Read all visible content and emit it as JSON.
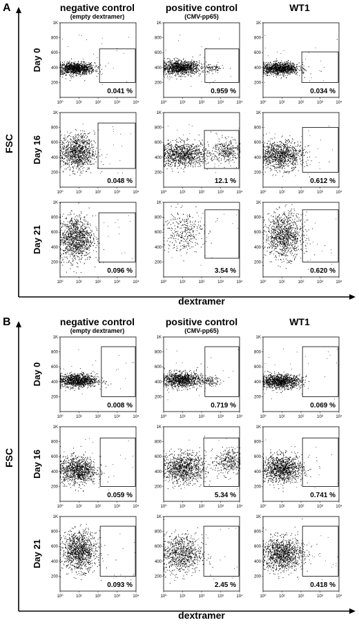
{
  "chart_data": [
    {
      "type": "scatter",
      "panel_label": "A",
      "columns": [
        {
          "title": "negative control",
          "subtitle": "(empty dextramer)"
        },
        {
          "title": "positive control",
          "subtitle": "(CMV-pp65)"
        },
        {
          "title": "WT1",
          "subtitle": ""
        }
      ],
      "rows": [
        "Day 0",
        "Day 16",
        "Day 21"
      ],
      "xlabel": "dextramer",
      "ylabel": "FSC",
      "x_scale": "log",
      "xlim": [
        1,
        10000
      ],
      "ylim": [
        0,
        1000
      ],
      "x_ticks": [
        "10⁰",
        "10¹",
        "10²",
        "10³",
        "10⁴"
      ],
      "y_ticks": [
        "200",
        "400",
        "600",
        "800",
        "1K"
      ],
      "gate_percent": [
        [
          "0.041 %",
          "0.959 %",
          "0.034 %"
        ],
        [
          "0.048 %",
          "12.1 %",
          "0.612 %"
        ],
        [
          "0.096 %",
          "3.54 %",
          "0.620 %"
        ]
      ],
      "gates": [
        [
          {
            "x": [
              120,
              10000
            ],
            "y": [
              200,
              650
            ]
          },
          {
            "x": [
              150,
              10000
            ],
            "y": [
              200,
              650
            ]
          },
          {
            "x": [
              110,
              10000
            ],
            "y": [
              200,
              610
            ]
          }
        ],
        [
          {
            "x": [
              100,
              10000
            ],
            "y": [
              250,
              860
            ]
          },
          {
            "x": [
              140,
              10000
            ],
            "y": [
              250,
              760
            ]
          },
          {
            "x": [
              120,
              10000
            ],
            "y": [
              200,
              800
            ]
          }
        ],
        [
          {
            "x": [
              110,
              10000
            ],
            "y": [
              200,
              860
            ]
          },
          {
            "x": [
              150,
              10000
            ],
            "y": [
              250,
              900
            ]
          },
          {
            "x": [
              120,
              10000
            ],
            "y": [
              200,
              900
            ]
          }
        ]
      ],
      "populations": [
        [
          [
            {
              "logx": 0.8,
              "y": 390,
              "sx": 0.5,
              "sy": 40,
              "n": 1100
            }
          ],
          [
            {
              "logx": 0.85,
              "y": 400,
              "sx": 0.55,
              "sy": 45,
              "n": 1100
            },
            {
              "logx": 2.6,
              "y": 390,
              "sx": 0.25,
              "sy": 30,
              "n": 80
            }
          ],
          [
            {
              "logx": 0.9,
              "y": 390,
              "sx": 0.5,
              "sy": 40,
              "n": 1100
            }
          ]
        ],
        [
          [
            {
              "logx": 0.9,
              "y": 470,
              "sx": 0.45,
              "sy": 120,
              "n": 1000
            }
          ],
          [
            {
              "logx": 1.0,
              "y": 440,
              "sx": 0.7,
              "sy": 80,
              "n": 1000
            },
            {
              "logx": 3.3,
              "y": 490,
              "sx": 0.35,
              "sy": 80,
              "n": 300
            }
          ],
          [
            {
              "logx": 0.9,
              "y": 430,
              "sx": 0.6,
              "sy": 95,
              "n": 1000
            }
          ]
        ],
        [
          [
            {
              "logx": 0.8,
              "y": 520,
              "sx": 0.45,
              "sy": 150,
              "n": 1100
            }
          ],
          [
            {
              "logx": 1.0,
              "y": 620,
              "sx": 0.55,
              "sy": 140,
              "n": 300
            }
          ],
          [
            {
              "logx": 1.1,
              "y": 560,
              "sx": 0.5,
              "sy": 150,
              "n": 1000
            }
          ]
        ]
      ]
    },
    {
      "type": "scatter",
      "panel_label": "B",
      "columns": [
        {
          "title": "negative control",
          "subtitle": "(empty dextramer)"
        },
        {
          "title": "positive control",
          "subtitle": "(CMV-pp65)"
        },
        {
          "title": "WT1",
          "subtitle": ""
        }
      ],
      "rows": [
        "Day 0",
        "Day 16",
        "Day 21"
      ],
      "xlabel": "dextramer",
      "ylabel": "FSC",
      "x_scale": "log",
      "xlim": [
        1,
        10000
      ],
      "ylim": [
        0,
        1000
      ],
      "x_ticks": [
        "10⁰",
        "10¹",
        "10²",
        "10³",
        "10⁴"
      ],
      "y_ticks": [
        "200",
        "400",
        "600",
        "800",
        "1K"
      ],
      "gate_percent": [
        [
          "0.008 %",
          "0.719 %",
          "0.069 %"
        ],
        [
          "0.059 %",
          "5.34 %",
          "0.741 %"
        ],
        [
          "0.093 %",
          "2.45 %",
          "0.418 %"
        ]
      ],
      "gates": [
        [
          {
            "x": [
              150,
              10000
            ],
            "y": [
              200,
              870
            ]
          },
          {
            "x": [
              150,
              10000
            ],
            "y": [
              200,
              870
            ]
          },
          {
            "x": [
              120,
              10000
            ],
            "y": [
              200,
              870
            ]
          }
        ],
        [
          {
            "x": [
              130,
              10000
            ],
            "y": [
              200,
              850
            ]
          },
          {
            "x": [
              130,
              10000
            ],
            "y": [
              200,
              850
            ]
          },
          {
            "x": [
              120,
              10000
            ],
            "y": [
              200,
              850
            ]
          }
        ],
        [
          {
            "x": [
              130,
              10000
            ],
            "y": [
              200,
              870
            ]
          },
          {
            "x": [
              130,
              10000
            ],
            "y": [
              200,
              870
            ]
          },
          {
            "x": [
              120,
              10000
            ],
            "y": [
              200,
              870
            ]
          }
        ]
      ],
      "populations": [
        [
          [
            {
              "logx": 0.85,
              "y": 420,
              "sx": 0.55,
              "sy": 45,
              "n": 1100
            }
          ],
          [
            {
              "logx": 0.9,
              "y": 430,
              "sx": 0.55,
              "sy": 50,
              "n": 1000
            },
            {
              "logx": 2.4,
              "y": 410,
              "sx": 0.3,
              "sy": 30,
              "n": 100
            }
          ],
          [
            {
              "logx": 0.9,
              "y": 410,
              "sx": 0.55,
              "sy": 45,
              "n": 1100
            }
          ]
        ],
        [
          [
            {
              "logx": 0.9,
              "y": 420,
              "sx": 0.5,
              "sy": 90,
              "n": 1000
            }
          ],
          [
            {
              "logx": 1.0,
              "y": 450,
              "sx": 0.6,
              "sy": 100,
              "n": 1000
            },
            {
              "logx": 3.4,
              "y": 540,
              "sx": 0.35,
              "sy": 90,
              "n": 300
            }
          ],
          [
            {
              "logx": 1.0,
              "y": 440,
              "sx": 0.55,
              "sy": 90,
              "n": 1100
            }
          ]
        ],
        [
          [
            {
              "logx": 1.0,
              "y": 540,
              "sx": 0.45,
              "sy": 130,
              "n": 1100
            }
          ],
          [
            {
              "logx": 0.9,
              "y": 500,
              "sx": 0.55,
              "sy": 130,
              "n": 800
            }
          ],
          [
            {
              "logx": 1.0,
              "y": 500,
              "sx": 0.55,
              "sy": 110,
              "n": 1100
            }
          ]
        ]
      ]
    }
  ]
}
